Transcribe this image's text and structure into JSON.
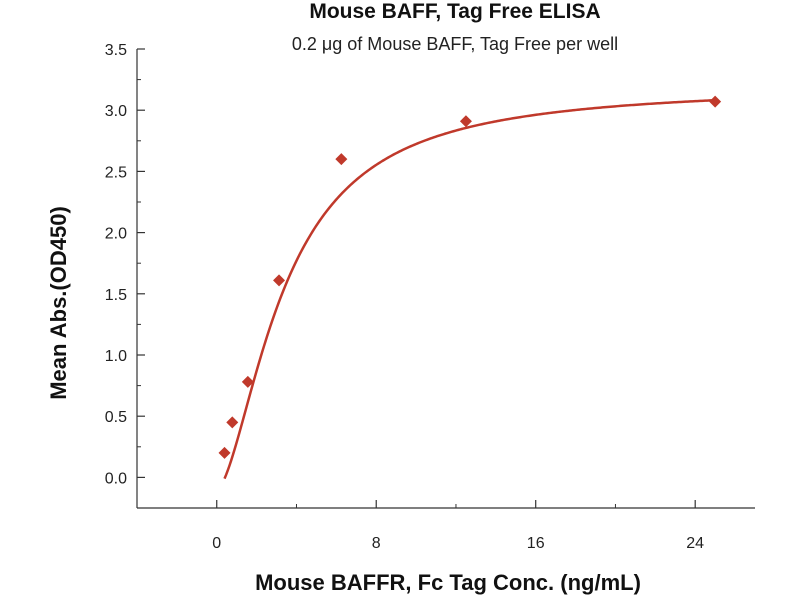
{
  "chart_data": {
    "type": "scatter",
    "title": "Mouse BAFF, Tag Free ELISA",
    "subtitle": "0.2 μg of Mouse BAFF, Tag Free per well",
    "xlabel": "Mouse BAFFR, Fc Tag Conc. (ng/mL)",
    "ylabel": "Mean Abs.(OD450)",
    "xlim": [
      -4,
      27
    ],
    "ylim": [
      -0.25,
      3.5
    ],
    "xticks": [
      0,
      8,
      16,
      24
    ],
    "xtick_labels": [
      "0",
      "8",
      "16",
      "24"
    ],
    "yticks": [
      0.0,
      0.5,
      1.0,
      1.5,
      2.0,
      2.5,
      3.0,
      3.5
    ],
    "ytick_labels": [
      "0.0",
      "0.5",
      "1.0",
      "1.5",
      "2.0",
      "2.5",
      "3.0",
      "3.5"
    ],
    "grid": false,
    "color": "#c0392b",
    "series": [
      {
        "x": [
          0.39,
          0.78,
          1.56,
          3.125,
          6.25,
          12.5,
          25
        ],
        "y": [
          0.2,
          0.45,
          0.78,
          1.61,
          2.6,
          2.91,
          3.07
        ]
      }
    ],
    "fit": {
      "type": "4PL",
      "bottom": -0.1,
      "top": 3.2,
      "ec50": 3.4,
      "hill": 1.65
    }
  }
}
